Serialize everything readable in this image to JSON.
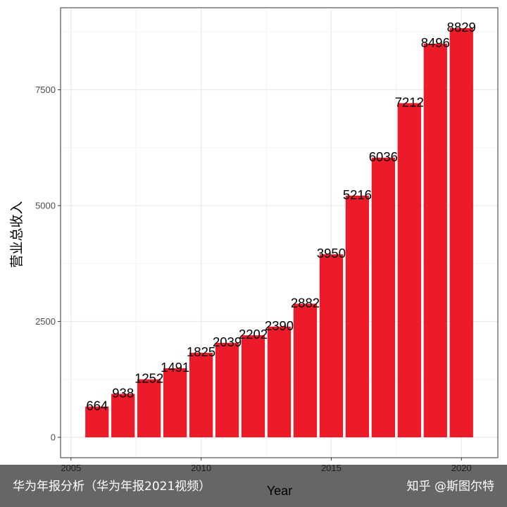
{
  "chart_data": {
    "type": "bar",
    "x": [
      2006,
      2007,
      2008,
      2009,
      2010,
      2011,
      2012,
      2013,
      2014,
      2015,
      2016,
      2017,
      2018,
      2019,
      2020
    ],
    "values": [
      664,
      938,
      1252,
      1491,
      1825,
      2039,
      2202,
      2390,
      2882,
      3950,
      5216,
      6036,
      7212,
      8496,
      8829
    ],
    "xlabel": "Year",
    "ylabel": "营业总收入",
    "xlim": [
      2004.6,
      2021.4
    ],
    "ylim": [
      -440,
      9270
    ],
    "xticks": [
      2005,
      2010,
      2015,
      2020
    ],
    "yticks": [
      0,
      2500,
      5000,
      7500
    ],
    "grid": true,
    "bar_color": "#ed1b2a"
  },
  "caption": {
    "left": "华为年报分析（华为年报2021视频）",
    "right": "知乎 @斯图尔特"
  }
}
